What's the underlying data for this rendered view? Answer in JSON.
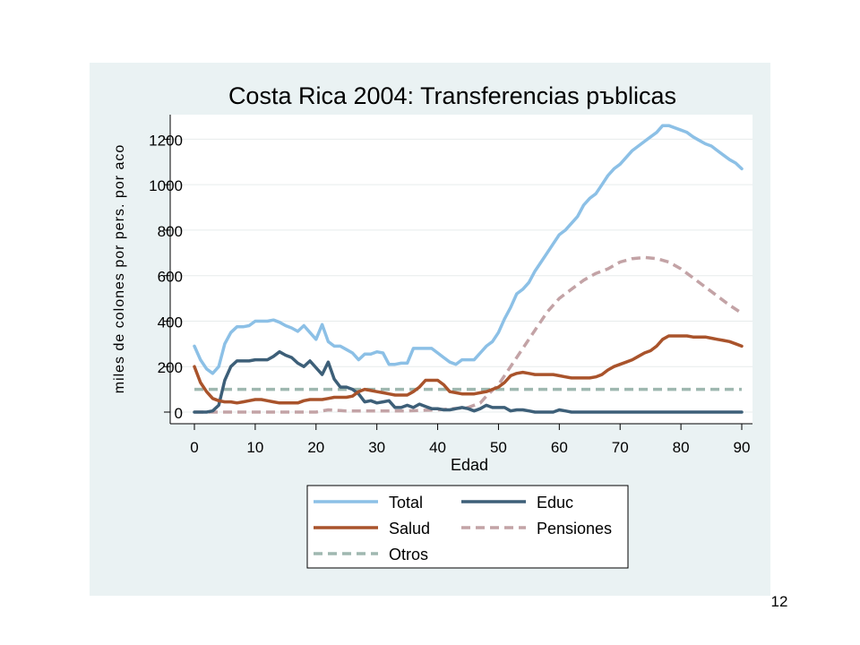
{
  "slide": {
    "page_number": "12"
  },
  "chart_data": {
    "type": "line",
    "title": "Costa Rica 2004: Transferencias pъblicas",
    "xlabel": "Edad",
    "ylabel": "miles de colones por pers. por aco",
    "xlim": [
      0,
      90
    ],
    "ylim": [
      0,
      1300
    ],
    "xticks": [
      0,
      10,
      20,
      30,
      40,
      50,
      60,
      70,
      80,
      90
    ],
    "yticks": [
      0,
      200,
      400,
      600,
      800,
      1000,
      1200
    ],
    "grid": true,
    "legend_position": "bottom",
    "series": [
      {
        "name": "Total",
        "color": "#8cc0e6",
        "dash": "solid",
        "x": [
          0,
          1,
          2,
          3,
          4,
          5,
          6,
          7,
          8,
          9,
          10,
          11,
          12,
          13,
          14,
          15,
          16,
          17,
          18,
          19,
          20,
          21,
          22,
          23,
          24,
          25,
          26,
          27,
          28,
          29,
          30,
          31,
          32,
          33,
          34,
          35,
          36,
          37,
          38,
          39,
          40,
          41,
          42,
          43,
          44,
          45,
          46,
          47,
          48,
          49,
          50,
          51,
          52,
          53,
          54,
          55,
          56,
          57,
          58,
          59,
          60,
          61,
          62,
          63,
          64,
          65,
          66,
          67,
          68,
          69,
          70,
          71,
          72,
          73,
          74,
          75,
          76,
          77,
          78,
          79,
          80,
          81,
          82,
          83,
          84,
          85,
          86,
          87,
          88,
          89,
          90
        ],
        "y": [
          290,
          230,
          190,
          170,
          200,
          300,
          350,
          375,
          375,
          380,
          400,
          400,
          400,
          405,
          395,
          380,
          370,
          355,
          380,
          350,
          320,
          385,
          310,
          290,
          290,
          275,
          260,
          230,
          255,
          255,
          265,
          260,
          210,
          210,
          215,
          215,
          280,
          280,
          280,
          280,
          260,
          240,
          220,
          210,
          230,
          230,
          230,
          260,
          290,
          310,
          350,
          410,
          460,
          520,
          540,
          570,
          620,
          660,
          700,
          740,
          780,
          800,
          830,
          860,
          910,
          940,
          960,
          1000,
          1040,
          1070,
          1090,
          1120,
          1150,
          1170,
          1190,
          1210,
          1230,
          1260,
          1260,
          1250,
          1240,
          1230,
          1210,
          1195,
          1180,
          1170,
          1150,
          1130,
          1110,
          1095,
          1070
        ]
      },
      {
        "name": "Educ",
        "color": "#3d5f78",
        "dash": "solid",
        "x": [
          0,
          1,
          2,
          3,
          4,
          5,
          6,
          7,
          8,
          9,
          10,
          11,
          12,
          13,
          14,
          15,
          16,
          17,
          18,
          19,
          20,
          21,
          22,
          23,
          24,
          25,
          26,
          27,
          28,
          29,
          30,
          31,
          32,
          33,
          34,
          35,
          36,
          37,
          38,
          39,
          40,
          41,
          42,
          43,
          44,
          45,
          46,
          47,
          48,
          49,
          50,
          51,
          52,
          53,
          54,
          55,
          56,
          57,
          58,
          59,
          60,
          61,
          62,
          65,
          70,
          75,
          80,
          85,
          90
        ],
        "y": [
          0,
          0,
          0,
          5,
          30,
          140,
          200,
          225,
          225,
          225,
          230,
          230,
          230,
          245,
          265,
          250,
          240,
          215,
          200,
          225,
          195,
          165,
          220,
          145,
          110,
          110,
          100,
          80,
          45,
          50,
          40,
          45,
          50,
          20,
          20,
          30,
          20,
          35,
          25,
          15,
          15,
          10,
          10,
          15,
          20,
          15,
          5,
          15,
          30,
          20,
          20,
          20,
          5,
          10,
          10,
          5,
          0,
          0,
          0,
          0,
          10,
          5,
          0,
          0,
          0,
          0,
          0,
          0,
          0
        ]
      },
      {
        "name": "Salud",
        "color": "#a9532b",
        "dash": "solid",
        "x": [
          0,
          1,
          2,
          3,
          4,
          5,
          6,
          7,
          8,
          9,
          10,
          11,
          12,
          13,
          14,
          15,
          16,
          17,
          18,
          19,
          20,
          21,
          22,
          23,
          24,
          25,
          26,
          27,
          28,
          29,
          30,
          31,
          32,
          33,
          34,
          35,
          36,
          37,
          38,
          39,
          40,
          41,
          42,
          43,
          44,
          45,
          46,
          47,
          48,
          49,
          50,
          51,
          52,
          53,
          54,
          55,
          56,
          57,
          58,
          59,
          60,
          61,
          62,
          63,
          64,
          65,
          66,
          67,
          68,
          69,
          70,
          71,
          72,
          73,
          74,
          75,
          76,
          77,
          78,
          79,
          80,
          81,
          82,
          83,
          84,
          85,
          86,
          87,
          88,
          89,
          90
        ],
        "y": [
          200,
          130,
          90,
          60,
          50,
          45,
          45,
          40,
          45,
          50,
          55,
          55,
          50,
          45,
          40,
          40,
          40,
          40,
          50,
          55,
          55,
          55,
          60,
          65,
          65,
          65,
          70,
          90,
          100,
          95,
          90,
          85,
          80,
          75,
          75,
          75,
          90,
          110,
          140,
          140,
          140,
          120,
          90,
          85,
          80,
          80,
          80,
          85,
          90,
          100,
          110,
          130,
          160,
          170,
          175,
          170,
          165,
          165,
          165,
          165,
          160,
          155,
          150,
          150,
          150,
          150,
          155,
          165,
          185,
          200,
          210,
          220,
          230,
          245,
          260,
          270,
          290,
          320,
          335,
          335,
          335,
          335,
          330,
          330,
          330,
          325,
          320,
          315,
          310,
          300,
          290
        ]
      },
      {
        "name": "Pensiones",
        "color": "#c3a3a6",
        "dash": "dashed",
        "x": [
          0,
          5,
          10,
          15,
          20,
          22,
          25,
          30,
          35,
          40,
          45,
          47,
          48,
          50,
          52,
          54,
          56,
          58,
          60,
          62,
          64,
          66,
          68,
          70,
          72,
          74,
          76,
          78,
          80,
          82,
          84,
          86,
          88,
          90
        ],
        "y": [
          0,
          0,
          0,
          0,
          0,
          10,
          5,
          5,
          5,
          10,
          20,
          40,
          70,
          120,
          200,
          280,
          360,
          440,
          500,
          540,
          580,
          610,
          630,
          660,
          675,
          680,
          675,
          660,
          630,
          590,
          550,
          510,
          470,
          435
        ]
      },
      {
        "name": "Otros",
        "color": "#9fb8b0",
        "dash": "dashed",
        "x": [
          0,
          90
        ],
        "y": [
          100,
          100
        ]
      }
    ]
  }
}
